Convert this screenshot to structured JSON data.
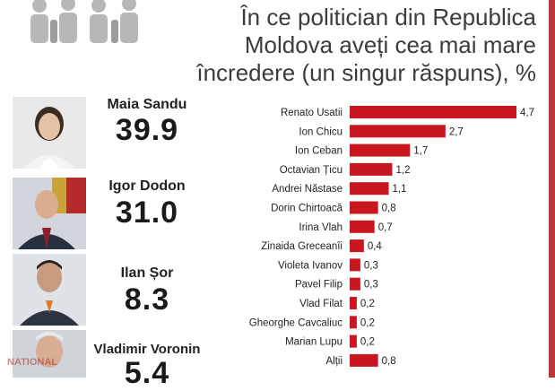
{
  "title": {
    "line1": "În ce politician din Republica",
    "line2": "Moldova aveți cea mai mare",
    "line3": "încredere (un singur răspuns), %"
  },
  "leaders": [
    {
      "name": "Maia Sandu",
      "value": "39.9"
    },
    {
      "name": "Igor Dodon",
      "value": "31.0"
    },
    {
      "name": "Ilan Șor",
      "value": "8.3"
    },
    {
      "name": "Vladimir Voronin",
      "value": "5.4"
    }
  ],
  "watermark": "NATIONAL",
  "colors": {
    "bar": "#c8171e",
    "accent_border": "#c0353b"
  },
  "chart_data": {
    "type": "bar",
    "orientation": "horizontal",
    "title": "În ce politician din Republica Moldova aveți cea mai mare încredere (un singur răspuns), %",
    "categories": [
      "Renato Usatii",
      "Ion Chicu",
      "Ion Ceban",
      "Octavian Țicu",
      "Andrei Năstase",
      "Dorin Chirtoacă",
      "Irina Vlah",
      "Zinaida Greceanîi",
      "Violeta Ivanov",
      "Pavel Filip",
      "Vlad Filat",
      "Gheorghe Cavcaliuc",
      "Marian Lupu",
      "Alții"
    ],
    "values": [
      4.7,
      2.7,
      1.7,
      1.2,
      1.1,
      0.8,
      0.7,
      0.4,
      0.3,
      0.3,
      0.2,
      0.2,
      0.2,
      0.8
    ],
    "value_labels": [
      "4,7",
      "2,7",
      "1,7",
      "1,2",
      "1,1",
      "0,8",
      "0,7",
      "0,4",
      "0,3",
      "0,3",
      "0,2",
      "0,2",
      "0,2",
      "0,8"
    ],
    "xlim": [
      0,
      4.7
    ],
    "grid": false
  }
}
